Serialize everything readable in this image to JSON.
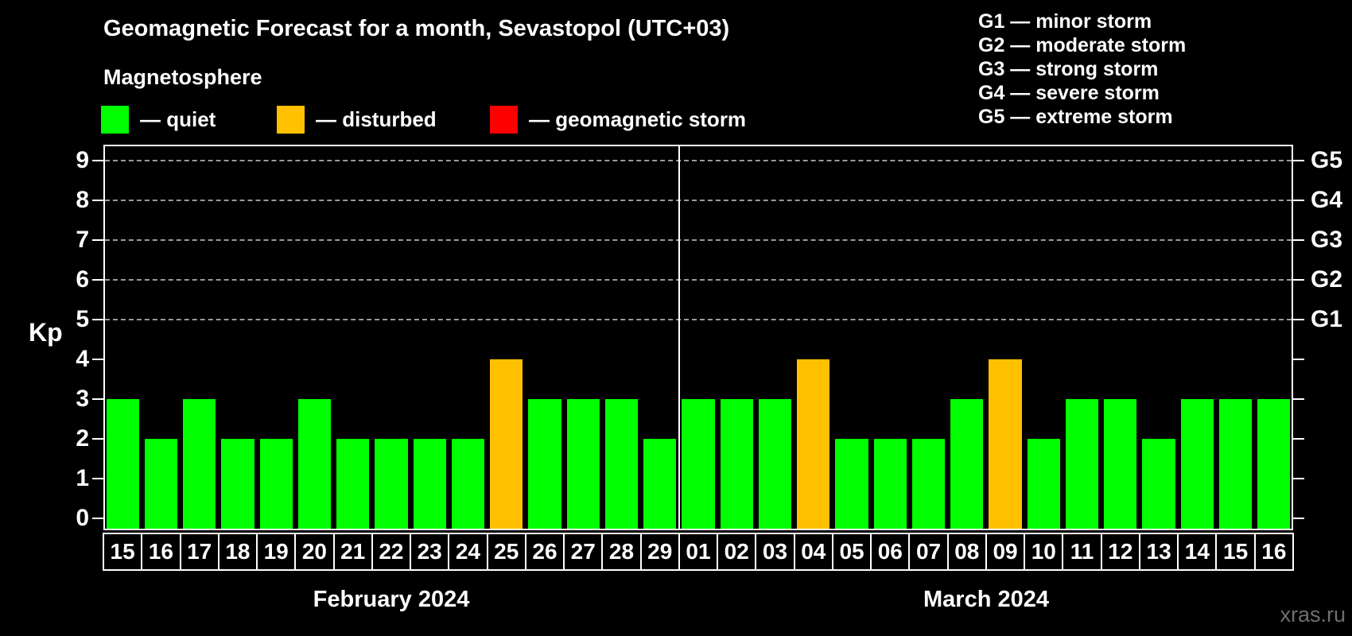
{
  "title": "Geomagnetic Forecast for a month, Sevastopol (UTC+03)",
  "subtitle": "Magnetosphere",
  "legend": {
    "items": [
      {
        "label": "— quiet",
        "color": "#00ff00",
        "status": "quiet"
      },
      {
        "label": "— disturbed",
        "color": "#ffc000",
        "status": "disturbed"
      },
      {
        "label": "— geomagnetic storm",
        "color": "#ff0000",
        "status": "storm"
      }
    ]
  },
  "g_legend": [
    "G1 — minor storm",
    "G2 — moderate storm",
    "G3 — strong storm",
    "G4 — severe storm",
    "G5 — extreme storm"
  ],
  "watermark": "xras.ru",
  "chart_data": {
    "type": "bar",
    "ylabel": "Kp",
    "ylim": [
      0,
      9.4
    ],
    "y_ticks": [
      0,
      1,
      2,
      3,
      4,
      5,
      6,
      7,
      8,
      9
    ],
    "gridlines_kp": [
      5,
      6,
      7,
      8,
      9
    ],
    "right_axis_ticks": [
      {
        "label": "G1",
        "kp": 5
      },
      {
        "label": "G2",
        "kp": 6
      },
      {
        "label": "G3",
        "kp": 7
      },
      {
        "label": "G4",
        "kp": 8
      },
      {
        "label": "G5",
        "kp": 9
      }
    ],
    "colors": {
      "quiet": "#00ff00",
      "disturbed": "#ffc000",
      "storm": "#ff0000"
    },
    "months": [
      {
        "label": "February 2024",
        "days": [
          {
            "day": "15",
            "kp": 3,
            "status": "quiet"
          },
          {
            "day": "16",
            "kp": 2,
            "status": "quiet"
          },
          {
            "day": "17",
            "kp": 3,
            "status": "quiet"
          },
          {
            "day": "18",
            "kp": 2,
            "status": "quiet"
          },
          {
            "day": "19",
            "kp": 2,
            "status": "quiet"
          },
          {
            "day": "20",
            "kp": 3,
            "status": "quiet"
          },
          {
            "day": "21",
            "kp": 2,
            "status": "quiet"
          },
          {
            "day": "22",
            "kp": 2,
            "status": "quiet"
          },
          {
            "day": "23",
            "kp": 2,
            "status": "quiet"
          },
          {
            "day": "24",
            "kp": 2,
            "status": "quiet"
          },
          {
            "day": "25",
            "kp": 4,
            "status": "disturbed"
          },
          {
            "day": "26",
            "kp": 3,
            "status": "quiet"
          },
          {
            "day": "27",
            "kp": 3,
            "status": "quiet"
          },
          {
            "day": "28",
            "kp": 3,
            "status": "quiet"
          },
          {
            "day": "29",
            "kp": 2,
            "status": "quiet"
          }
        ]
      },
      {
        "label": "March 2024",
        "days": [
          {
            "day": "01",
            "kp": 3,
            "status": "quiet"
          },
          {
            "day": "02",
            "kp": 3,
            "status": "quiet"
          },
          {
            "day": "03",
            "kp": 3,
            "status": "quiet"
          },
          {
            "day": "04",
            "kp": 4,
            "status": "disturbed"
          },
          {
            "day": "05",
            "kp": 2,
            "status": "quiet"
          },
          {
            "day": "06",
            "kp": 2,
            "status": "quiet"
          },
          {
            "day": "07",
            "kp": 2,
            "status": "quiet"
          },
          {
            "day": "08",
            "kp": 3,
            "status": "quiet"
          },
          {
            "day": "09",
            "kp": 4,
            "status": "disturbed"
          },
          {
            "day": "10",
            "kp": 2,
            "status": "quiet"
          },
          {
            "day": "11",
            "kp": 3,
            "status": "quiet"
          },
          {
            "day": "12",
            "kp": 3,
            "status": "quiet"
          },
          {
            "day": "13",
            "kp": 2,
            "status": "quiet"
          },
          {
            "day": "14",
            "kp": 3,
            "status": "quiet"
          },
          {
            "day": "15",
            "kp": 3,
            "status": "quiet"
          },
          {
            "day": "16",
            "kp": 3,
            "status": "quiet"
          }
        ]
      }
    ]
  }
}
